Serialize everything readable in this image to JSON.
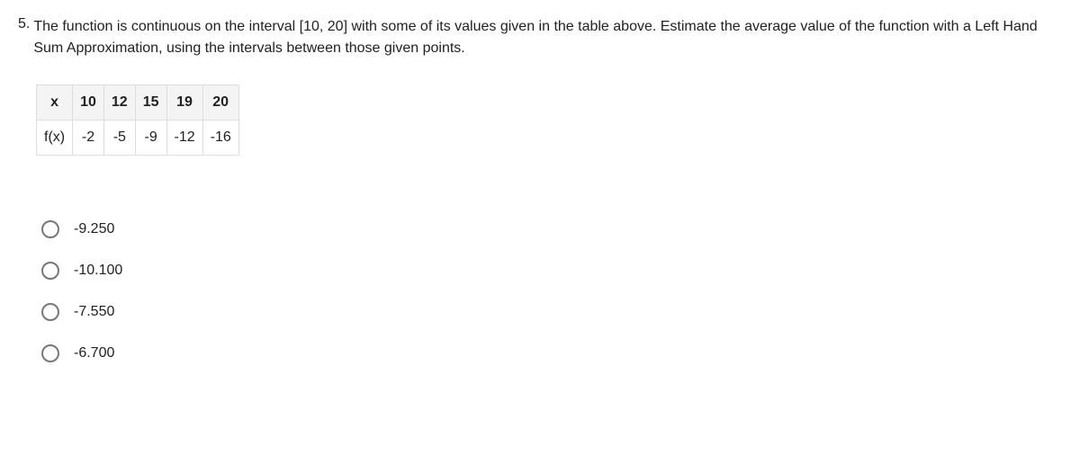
{
  "question": {
    "number": "5.",
    "text": "The function is continuous on the interval [10, 20] with some of its values given in the table above. Estimate the average value of the function with a Left Hand Sum Approximation, using the intervals between those given points."
  },
  "table": {
    "header_label": "x",
    "x_values": [
      "10",
      "12",
      "15",
      "19",
      "20"
    ],
    "row_label": "f(x)",
    "fx_values": [
      "-2",
      "-5",
      "-9",
      "-12",
      "-16"
    ]
  },
  "options": [
    "-9.250",
    "-10.100",
    "-7.550",
    "-6.700"
  ]
}
